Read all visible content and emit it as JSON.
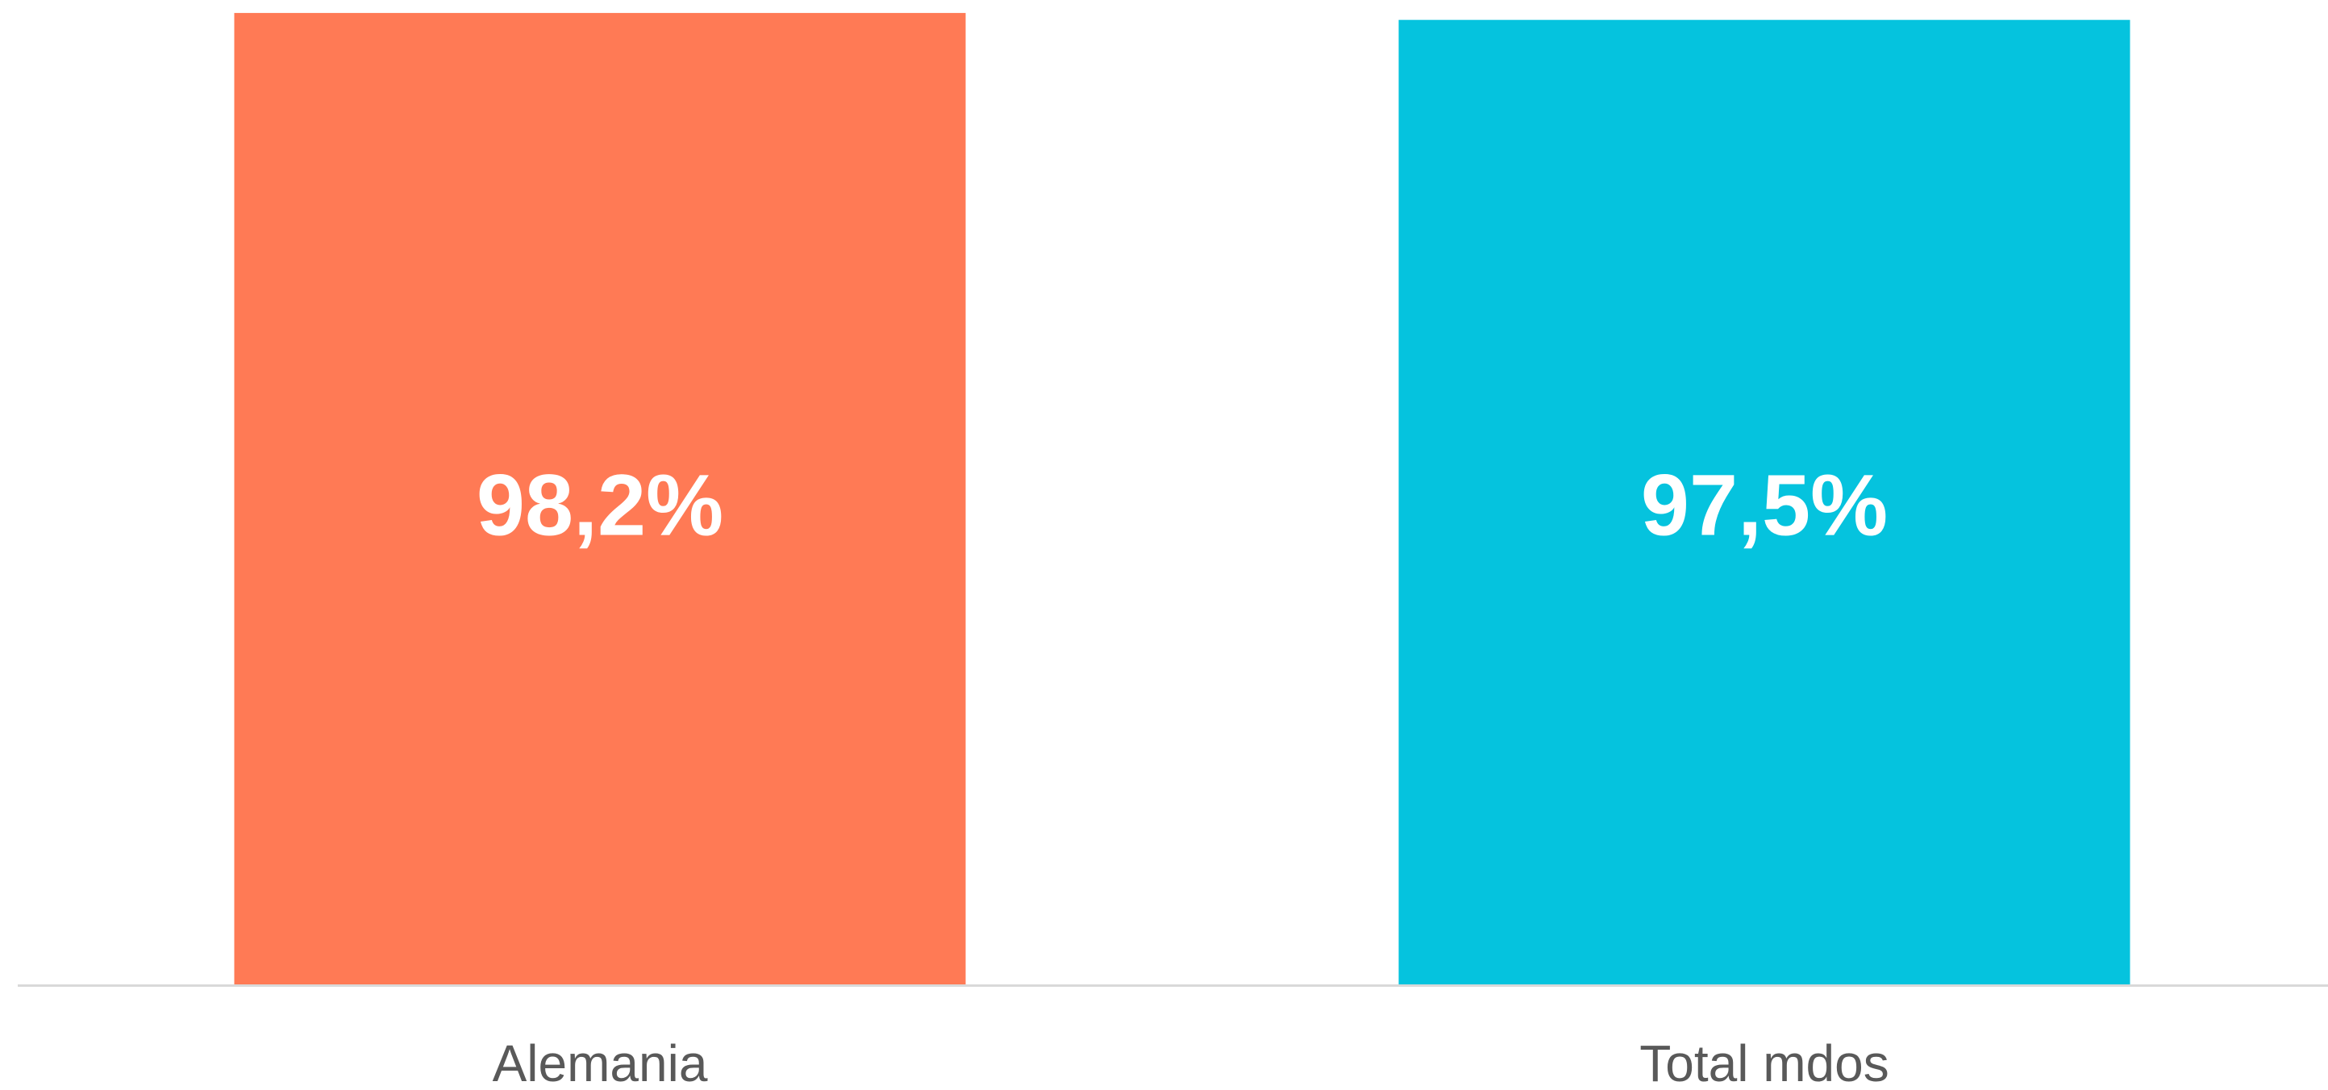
{
  "chart_data": {
    "type": "bar",
    "categories": [
      "Alemania",
      "Total mdos"
    ],
    "values": [
      98.2,
      97.5
    ],
    "value_labels": [
      "98,2%",
      "97,5%"
    ],
    "colors": [
      "#ff7a55",
      "#05c3de"
    ],
    "ylim": [
      0,
      100
    ]
  }
}
